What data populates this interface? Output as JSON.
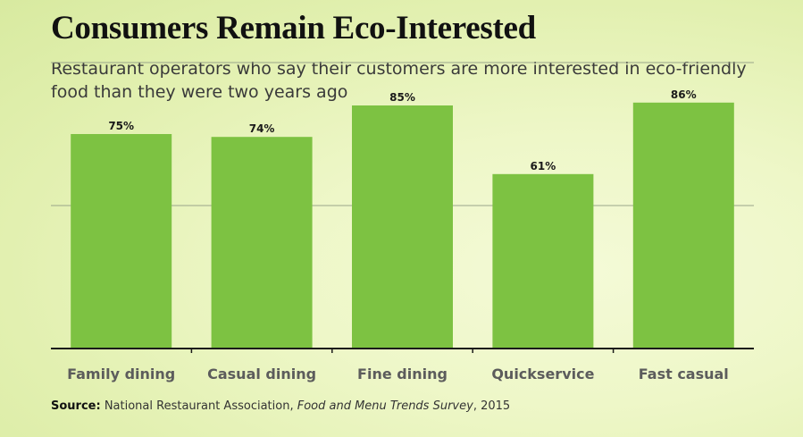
{
  "chart_data": {
    "type": "bar",
    "title": "Consumers Remain Eco-Interested",
    "subtitle": "Restaurant operators who say their customers are more interested in eco-friendly food than they were two years ago",
    "categories": [
      "Family dining",
      "Casual dining",
      "Fine dining",
      "Quickservice",
      "Fast casual"
    ],
    "values": [
      75,
      74,
      85,
      61,
      86
    ],
    "value_labels": [
      "75%",
      "74%",
      "85%",
      "61%",
      "86%"
    ],
    "ylim": [
      0,
      100
    ],
    "grid": true,
    "colors": {
      "bar": "#7dc242",
      "axis": "#1a1a1a",
      "grid": "#9aa58a",
      "category_text": "#5c5c5c"
    }
  },
  "source": {
    "label": "Source:",
    "org": "National Restaurant Association,",
    "publication": "Food and Menu Trends Survey",
    "year": ", 2015"
  }
}
